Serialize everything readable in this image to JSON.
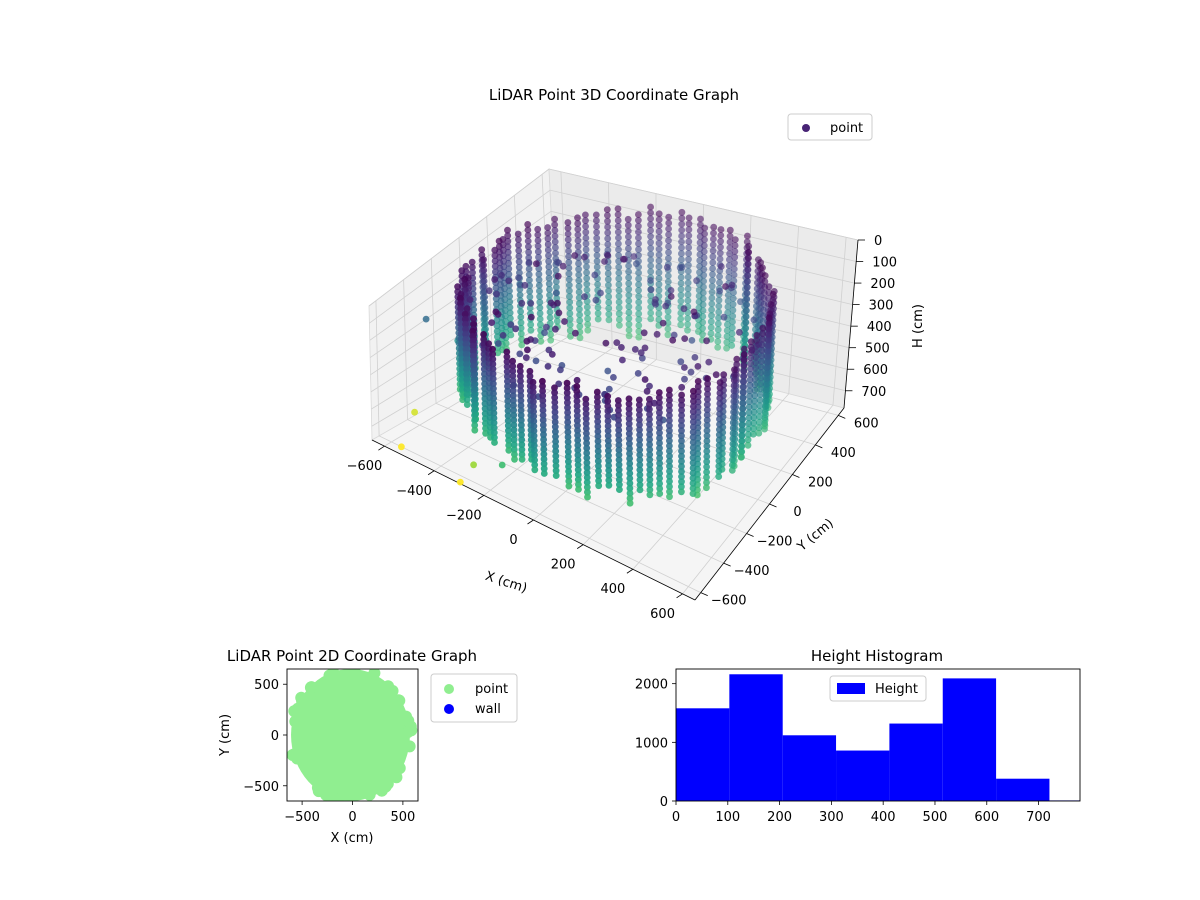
{
  "chart_data": [
    {
      "type": "scatter3d",
      "title": "LiDAR Point 3D Coordinate Graph",
      "xlabel": "X (cm)",
      "ylabel": "Y (cm)",
      "zlabel": "H (cm)",
      "xlim": [
        -650,
        650
      ],
      "ylim": [
        -650,
        650
      ],
      "zlim": [
        0,
        780
      ],
      "z_inverted": true,
      "x_ticks": [
        -600,
        -400,
        -200,
        0,
        200,
        400,
        600
      ],
      "y_ticks": [
        -600,
        -400,
        -200,
        0,
        200,
        400,
        600
      ],
      "z_ticks": [
        0,
        100,
        200,
        300,
        400,
        500,
        600,
        700
      ],
      "colormap": "viridis",
      "grid": true,
      "legend": {
        "position": "top-right",
        "entries": [
          {
            "label": "point",
            "color": "#482475"
          }
        ]
      },
      "structure": {
        "description_values": "cylindrical wall of points",
        "ring_radius": 600,
        "ring_height_range": [
          0,
          620
        ],
        "outlier_points": [
          {
            "x": -650,
            "y": -250,
            "h": 300
          },
          {
            "x": -580,
            "y": -150,
            "h": 430
          },
          {
            "x": -620,
            "y": -400,
            "h": 720
          },
          {
            "x": -560,
            "y": -600,
            "h": 780
          },
          {
            "x": -300,
            "y": -640,
            "h": 780
          },
          {
            "x": -250,
            "y": -630,
            "h": 650
          },
          {
            "x": -150,
            "y": -600,
            "h": 600
          }
        ]
      }
    },
    {
      "type": "scatter",
      "title": "LiDAR Point 2D Coordinate Graph",
      "xlabel": "X (cm)",
      "ylabel": "Y (cm)",
      "xlim": [
        -650,
        650
      ],
      "ylim": [
        -650,
        650
      ],
      "x_ticks": [
        -500,
        0,
        500
      ],
      "y_ticks": [
        -500,
        0,
        500
      ],
      "grid": false,
      "legend": {
        "position": "outside-right",
        "entries": [
          {
            "label": "point",
            "color": "#90ee90"
          },
          {
            "label": "wall",
            "color": "#0000ff"
          }
        ]
      },
      "series": [
        {
          "name": "point",
          "color": "#90ee90",
          "region": "filled disc",
          "center": [
            -20,
            0
          ],
          "radius_x": 590,
          "radius_y": 650
        }
      ]
    },
    {
      "type": "bar",
      "title": "Height Histogram",
      "xlabel": "",
      "ylabel": "",
      "xlim": [
        0,
        780
      ],
      "ylim": [
        0,
        2250
      ],
      "x_ticks": [
        0,
        100,
        200,
        300,
        400,
        500,
        600,
        700
      ],
      "y_ticks": [
        0,
        1000,
        2000
      ],
      "bar_color": "#0000ff",
      "legend": {
        "position": "top-center",
        "entries": [
          {
            "label": "Height",
            "color": "#0000ff"
          }
        ]
      },
      "bins": [
        {
          "start": 0,
          "end": 103,
          "count": 1580
        },
        {
          "start": 103,
          "end": 206,
          "count": 2160
        },
        {
          "start": 206,
          "end": 309,
          "count": 1120
        },
        {
          "start": 309,
          "end": 412,
          "count": 860
        },
        {
          "start": 412,
          "end": 515,
          "count": 1320
        },
        {
          "start": 515,
          "end": 618,
          "count": 2090
        },
        {
          "start": 618,
          "end": 721,
          "count": 380
        },
        {
          "start": 721,
          "end": 824,
          "count": 10
        }
      ]
    }
  ]
}
